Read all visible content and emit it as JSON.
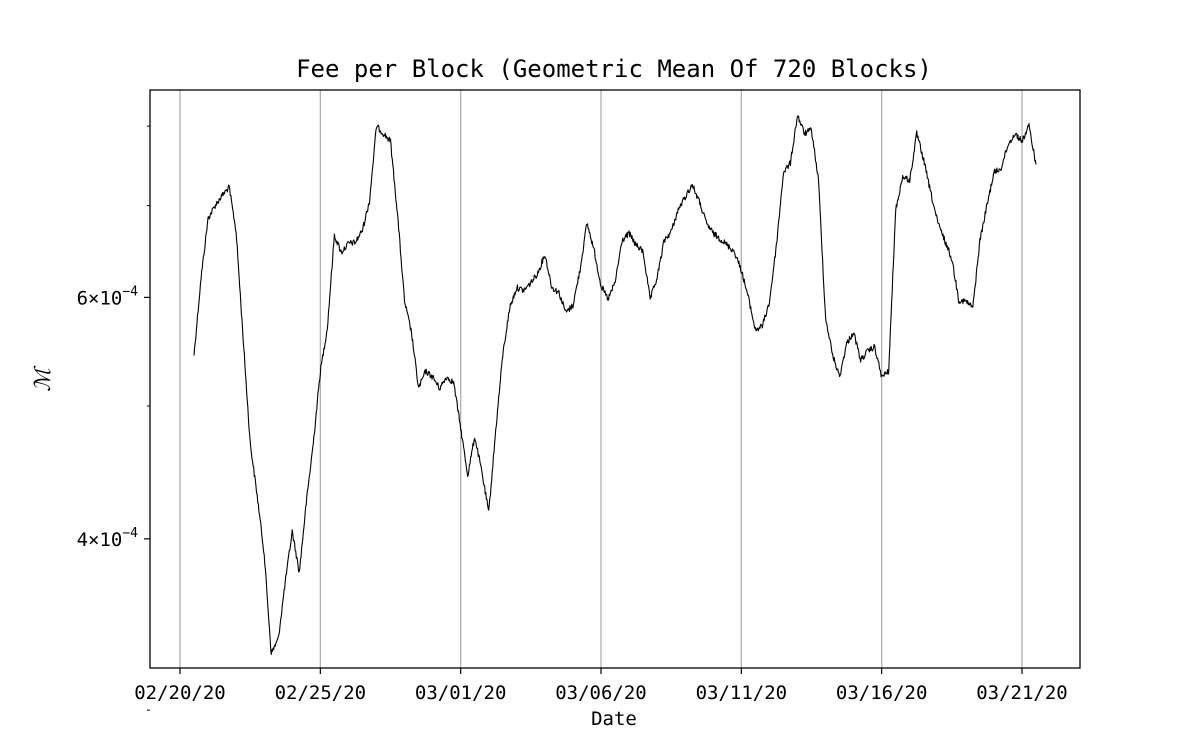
{
  "chart_data": {
    "type": "line",
    "title": "Fee per Block (Geometric Mean Of 720 Blocks)",
    "xlabel": "Date",
    "ylabel": "ℳ",
    "y_scale": "log",
    "ylim": [
      0.000322,
      0.00085
    ],
    "grid": "vertical-only",
    "line_color": "#000000",
    "grid_color": "#b0b0b0",
    "x_ticks": [
      {
        "date": "2020-02-20",
        "label": "02/20/20"
      },
      {
        "date": "2020-02-25",
        "label": "02/25/20"
      },
      {
        "date": "2020-03-01",
        "label": "03/01/20"
      },
      {
        "date": "2020-03-06",
        "label": "03/06/20"
      },
      {
        "date": "2020-03-11",
        "label": "03/11/20"
      },
      {
        "date": "2020-03-16",
        "label": "03/16/20"
      },
      {
        "date": "2020-03-21",
        "label": "03/21/20"
      }
    ],
    "y_major_ticks": [
      {
        "value": 0.0004,
        "mantissa": "4",
        "base": "×10",
        "exp": "−4"
      },
      {
        "value": 0.0006,
        "mantissa": "6",
        "base": "×10",
        "exp": "−4"
      }
    ],
    "y_minor_ticks": [
      0.0003,
      0.0005,
      0.0007,
      0.0008
    ],
    "series": [
      {
        "x": [
          "2020-02-20T12:00",
          "2020-02-20T18:00",
          "2020-02-21T00:00",
          "2020-02-21T06:00",
          "2020-02-21T12:00",
          "2020-02-21T18:00",
          "2020-02-22T00:00",
          "2020-02-22T06:00",
          "2020-02-22T12:00",
          "2020-02-22T18:00",
          "2020-02-23T00:00",
          "2020-02-23T06:00",
          "2020-02-23T12:00",
          "2020-02-23T18:00",
          "2020-02-24T00:00",
          "2020-02-24T06:00",
          "2020-02-24T12:00",
          "2020-02-24T18:00",
          "2020-02-25T00:00",
          "2020-02-25T06:00",
          "2020-02-25T12:00",
          "2020-02-25T18:00",
          "2020-02-26T00:00",
          "2020-02-26T06:00",
          "2020-02-26T12:00",
          "2020-02-26T18:00",
          "2020-02-27T00:00",
          "2020-02-27T06:00",
          "2020-02-27T12:00",
          "2020-02-27T18:00",
          "2020-02-28T00:00",
          "2020-02-28T06:00",
          "2020-02-28T12:00",
          "2020-02-28T18:00",
          "2020-02-29T00:00",
          "2020-02-29T06:00",
          "2020-02-29T12:00",
          "2020-02-29T18:00",
          "2020-03-01T00:00",
          "2020-03-01T06:00",
          "2020-03-01T12:00",
          "2020-03-01T18:00",
          "2020-03-02T00:00",
          "2020-03-02T06:00",
          "2020-03-02T12:00",
          "2020-03-02T18:00",
          "2020-03-03T00:00",
          "2020-03-03T06:00",
          "2020-03-03T12:00",
          "2020-03-03T18:00",
          "2020-03-04T00:00",
          "2020-03-04T06:00",
          "2020-03-04T12:00",
          "2020-03-04T18:00",
          "2020-03-05T00:00",
          "2020-03-05T06:00",
          "2020-03-05T12:00",
          "2020-03-05T18:00",
          "2020-03-06T00:00",
          "2020-03-06T06:00",
          "2020-03-06T12:00",
          "2020-03-06T18:00",
          "2020-03-07T00:00",
          "2020-03-07T06:00",
          "2020-03-07T12:00",
          "2020-03-07T18:00",
          "2020-03-08T00:00",
          "2020-03-08T06:00",
          "2020-03-08T12:00",
          "2020-03-08T18:00",
          "2020-03-09T00:00",
          "2020-03-09T06:00",
          "2020-03-09T12:00",
          "2020-03-09T18:00",
          "2020-03-10T00:00",
          "2020-03-10T06:00",
          "2020-03-10T12:00",
          "2020-03-10T18:00",
          "2020-03-11T00:00",
          "2020-03-11T06:00",
          "2020-03-11T12:00",
          "2020-03-11T18:00",
          "2020-03-12T00:00",
          "2020-03-12T06:00",
          "2020-03-12T12:00",
          "2020-03-12T18:00",
          "2020-03-13T00:00",
          "2020-03-13T06:00",
          "2020-03-13T12:00",
          "2020-03-13T18:00",
          "2020-03-14T00:00",
          "2020-03-14T06:00",
          "2020-03-14T12:00",
          "2020-03-14T18:00",
          "2020-03-15T00:00",
          "2020-03-15T06:00",
          "2020-03-15T12:00",
          "2020-03-15T18:00",
          "2020-03-16T00:00",
          "2020-03-16T06:00",
          "2020-03-16T12:00",
          "2020-03-16T18:00",
          "2020-03-17T00:00",
          "2020-03-17T06:00",
          "2020-03-17T12:00",
          "2020-03-17T18:00",
          "2020-03-18T00:00",
          "2020-03-18T06:00",
          "2020-03-18T12:00",
          "2020-03-18T18:00",
          "2020-03-19T00:00",
          "2020-03-19T06:00",
          "2020-03-19T12:00",
          "2020-03-19T18:00",
          "2020-03-20T00:00",
          "2020-03-20T06:00",
          "2020-03-20T12:00",
          "2020-03-20T18:00",
          "2020-03-21T00:00",
          "2020-03-21T06:00",
          "2020-03-21T12:00"
        ],
        "y": [
          0.000545,
          0.00062,
          0.000685,
          0.0007,
          0.000712,
          0.000722,
          0.00067,
          0.00056,
          0.00047,
          0.00043,
          0.00039,
          0.00033,
          0.000338,
          0.000372,
          0.000405,
          0.000378,
          0.000425,
          0.00047,
          0.00053,
          0.00057,
          0.000666,
          0.000647,
          0.000657,
          0.000658,
          0.000672,
          0.000705,
          0.0008,
          0.00079,
          0.00078,
          0.00069,
          0.000596,
          0.000565,
          0.000515,
          0.00053,
          0.000525,
          0.000515,
          0.000525,
          0.00052,
          0.000482,
          0.000445,
          0.000475,
          0.000448,
          0.000418,
          0.00048,
          0.000545,
          0.00059,
          0.00061,
          0.000607,
          0.000615,
          0.000625,
          0.000645,
          0.00061,
          0.000605,
          0.000585,
          0.000592,
          0.000628,
          0.00068,
          0.00065,
          0.000612,
          0.000598,
          0.000615,
          0.00066,
          0.000668,
          0.000655,
          0.000648,
          0.000598,
          0.00062,
          0.00066,
          0.00067,
          0.000695,
          0.00071,
          0.000725,
          0.000705,
          0.00068,
          0.000668,
          0.000662,
          0.000655,
          0.000648,
          0.000628,
          0.0006,
          0.000568,
          0.000572,
          0.000595,
          0.000655,
          0.00074,
          0.000752,
          0.000815,
          0.00079,
          0.000795,
          0.00073,
          0.00058,
          0.000545,
          0.000525,
          0.000555,
          0.000566,
          0.00054,
          0.000548,
          0.000552,
          0.000525,
          0.00053,
          0.000695,
          0.000735,
          0.00073,
          0.00079,
          0.000755,
          0.000715,
          0.00068,
          0.00066,
          0.00064,
          0.000597,
          0.000596,
          0.00059,
          0.00066,
          0.0007,
          0.00074,
          0.000745,
          0.000775,
          0.00079,
          0.00078,
          0.0008,
          0.00075
        ]
      }
    ]
  }
}
